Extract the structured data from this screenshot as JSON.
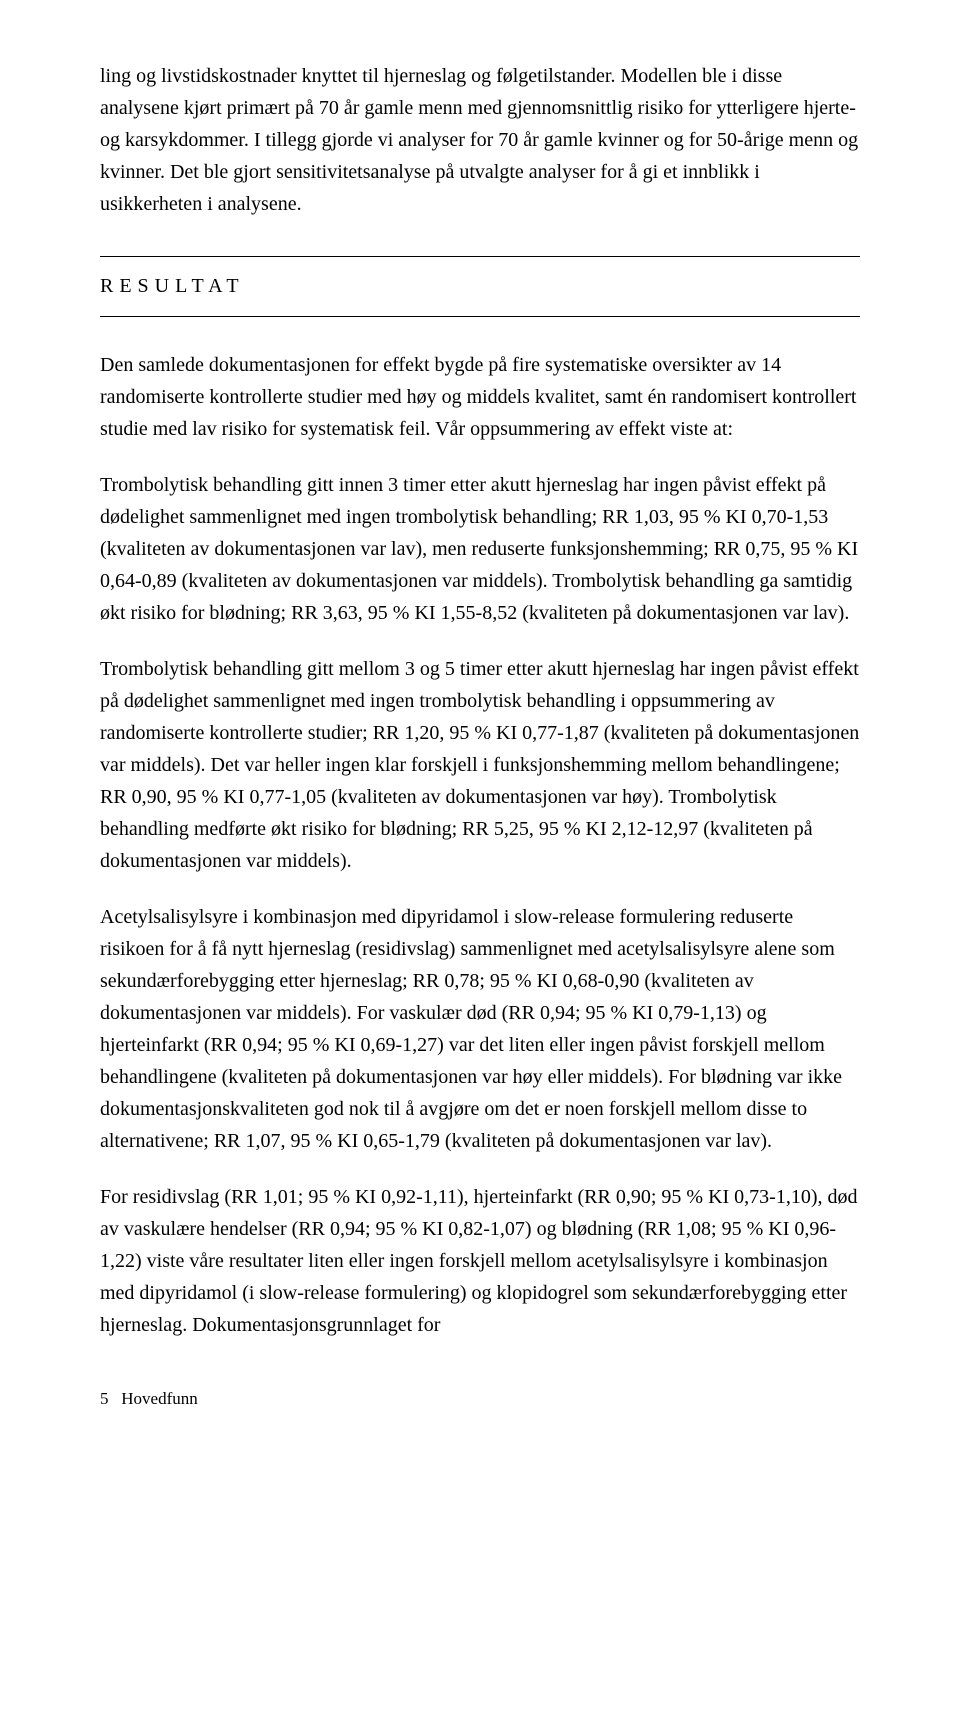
{
  "intro": {
    "p1": "ling og livstidskostnader knyttet til hjerneslag og følgetilstander. Modellen ble i disse analysene kjørt primært på 70 år gamle menn med gjennomsnittlig risiko for ytterligere hjerte- og karsykdommer. I tillegg gjorde vi analyser for 70 år gamle kvinner og for 50-årige menn og kvinner. Det ble gjort sensitivitetsanalyse på utvalgte analyser for å gi et innblikk i usikkerheten i analysene."
  },
  "heading": "RESULTAT",
  "result": {
    "p1": "Den samlede dokumentasjonen for effekt bygde på fire systematiske oversikter av 14 randomiserte kontrollerte studier med høy og middels kvalitet, samt én randomisert kontrollert studie med lav risiko for systematisk feil. Vår oppsummering av effekt viste at:",
    "p2": "Trombolytisk behandling gitt innen 3 timer etter akutt hjerneslag har ingen påvist effekt på dødelighet sammenlignet med ingen trombolytisk behandling; RR 1,03, 95 % KI 0,70-1,53 (kvaliteten av dokumentasjonen var lav), men reduserte funksjonshemming; RR 0,75, 95 % KI 0,64-0,89 (kvaliteten av dokumentasjonen var middels). Trombolytisk behandling ga samtidig økt risiko for blødning; RR 3,63, 95 % KI 1,55-8,52 (kvaliteten på dokumentasjonen var lav).",
    "p3": "Trombolytisk behandling gitt mellom 3 og 5 timer etter akutt hjerneslag har ingen påvist effekt på dødelighet sammenlignet med ingen trombolytisk behandling i oppsummering av randomiserte kontrollerte studier; RR 1,20, 95 % KI 0,77-1,87 (kvaliteten på dokumentasjonen var middels). Det var heller ingen klar forskjell i funksjonshemming mellom behandlingene; RR 0,90, 95 % KI 0,77-1,05 (kvaliteten av dokumentasjonen var høy). Trombolytisk behandling medførte økt risiko for blødning; RR 5,25, 95 % KI 2,12-12,97 (kvaliteten på dokumentasjonen var middels).",
    "p4": "Acetylsalisylsyre i kombinasjon med dipyridamol i slow-release formulering reduserte risikoen for å få nytt hjerneslag (residivslag) sammenlignet med acetylsalisylsyre alene som sekundærforebygging etter hjerneslag; RR 0,78; 95 % KI 0,68-0,90 (kvaliteten av dokumentasjonen var middels). For vaskulær død (RR 0,94; 95 % KI 0,79-1,13) og hjerteinfarkt (RR 0,94; 95 % KI 0,69-1,27) var det liten eller ingen påvist forskjell mellom behandlingene (kvaliteten på dokumentasjonen var høy eller middels). For blødning var ikke dokumentasjonskvaliteten god nok til å avgjøre om det er noen forskjell mellom disse to alternativene; RR 1,07, 95 % KI 0,65-1,79 (kvaliteten på dokumentasjonen var lav).",
    "p5": "For residivslag (RR 1,01; 95 % KI 0,92-1,11), hjerteinfarkt (RR 0,90; 95 % KI 0,73-1,10), død av vaskulære hendelser (RR 0,94; 95 % KI 0,82-1,07) og blødning (RR 1,08; 95 % KI 0,96-1,22) viste våre resultater liten eller ingen forskjell mellom acetylsalisylsyre i kombinasjon med dipyridamol (i slow-release formulering) og klopidogrel som sekundærforebygging etter hjerneslag. Dokumentasjonsgrunnlaget for"
  },
  "footer": {
    "page_number": "5",
    "section_label": "Hovedfunn"
  }
}
